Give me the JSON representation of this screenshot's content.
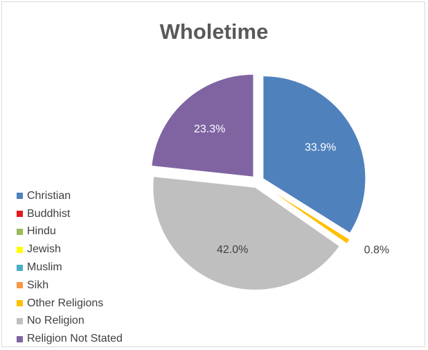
{
  "chart_data": {
    "type": "pie",
    "title": "Wholetime",
    "categories": [
      "Christian",
      "Buddhist",
      "Hindu",
      "Jewish",
      "Muslim",
      "Sikh",
      "Other Religions",
      "No Religion",
      "Religion Not Stated"
    ],
    "values": [
      33.9,
      0,
      0,
      0,
      0,
      0,
      0.8,
      42.0,
      23.3
    ],
    "data_labels": [
      "33.9%",
      "",
      "",
      "",
      "",
      "",
      "0.8%",
      "42.0%",
      "23.3%"
    ],
    "colors": [
      "#4f81bd",
      "#e31a1c",
      "#9bbb59",
      "#ffff00",
      "#4bacc6",
      "#f79646",
      "#ffc000",
      "#bfbfbf",
      "#8064a2"
    ],
    "label_colors": [
      "#ffffff",
      "#404040",
      "#404040",
      "#404040",
      "#404040",
      "#404040",
      "#404040",
      "#404040",
      "#ffffff"
    ],
    "exploded": true,
    "legend_position": "left"
  }
}
